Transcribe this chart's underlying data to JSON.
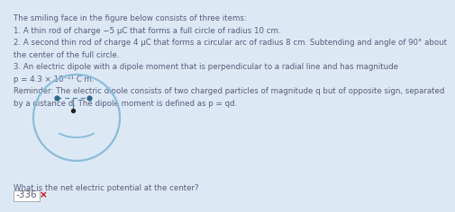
{
  "bg_color": "#dce9f5",
  "text_color": "#5a5a7a",
  "circle_color": "#8bbdd9",
  "dipole_color": "#5588aa",
  "dot_color": "#336688",
  "center_dot_color": "#222222",
  "answer_box_color": "#ffffff",
  "answer_border_color": "#aaaaaa",
  "answer_x_color": "#cc0000",
  "title": "The smiling face in the figure below consists of three items:",
  "line1": "1. A thin rod of charge −5 μC that forms a full circle of radius 10 cm.",
  "line2a": "2. A second thin rod of charge 4 μC that forms a circular arc of radius 8 cm. Subtending and angle of 90° about",
  "line2b": "the center of the full circle.",
  "line3a": "3. An electric dipole with a dipole moment that is perpendicular to a radial line and has magnitude",
  "line3b": "p = 4.3 × 10⁻²¹ C·m.",
  "rem_a": "Reminder: The electric dipole consists of two charged particles of magnitude q but of opposite sign, separated",
  "rem_b": "by a distance d. The dipole moment is defined as p = qd.",
  "question": "What is the net electric potential at the center?",
  "answer": "-336",
  "font_size": 6.2,
  "font_size_answer": 7.5
}
